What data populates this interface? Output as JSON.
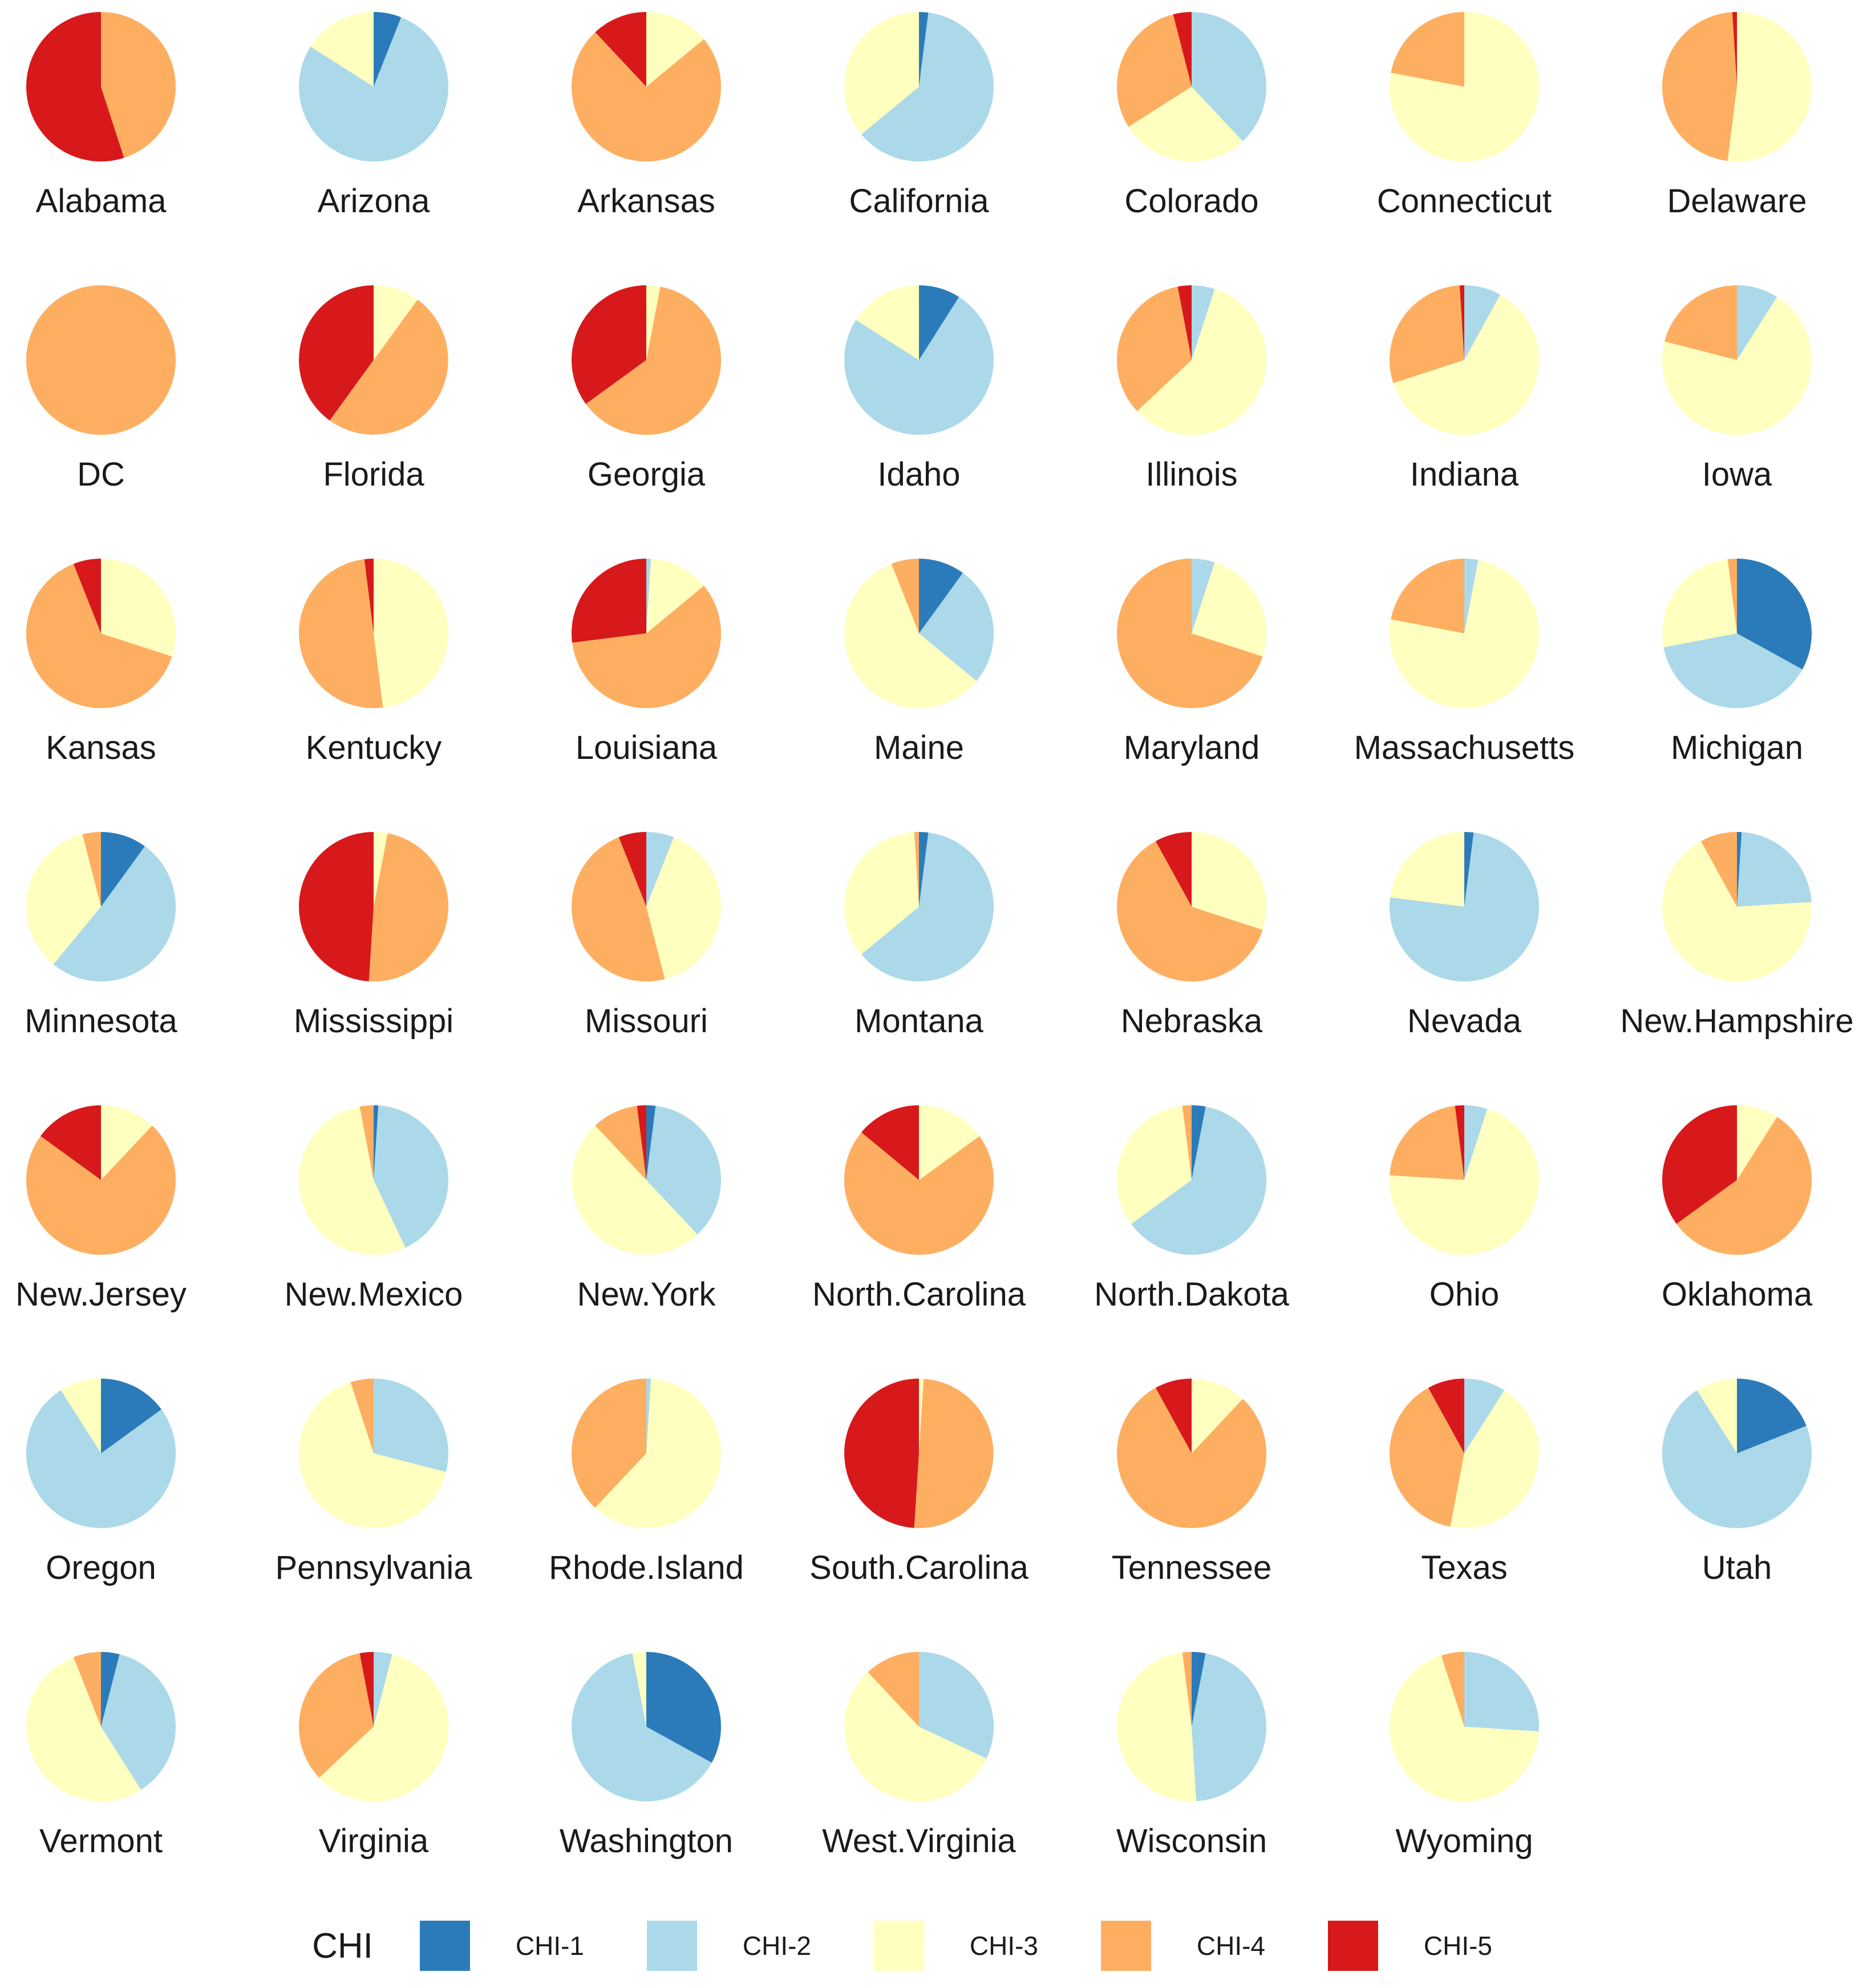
{
  "chart_data": {
    "type": "pie",
    "title": "",
    "legend_title": "CHI",
    "categories": [
      "CHI-1",
      "CHI-2",
      "CHI-3",
      "CHI-4",
      "CHI-5"
    ],
    "colors": [
      "#2b7bba",
      "#abd9e9",
      "#ffffbf",
      "#fdae61",
      "#d7191c"
    ],
    "value_unit": "percent share of each state",
    "states": [
      {
        "name": "Alabama",
        "values": [
          0,
          0,
          0,
          45,
          55
        ]
      },
      {
        "name": "Arizona",
        "values": [
          6,
          78,
          16,
          0,
          0
        ]
      },
      {
        "name": "Arkansas",
        "values": [
          0,
          0,
          14,
          74,
          12
        ]
      },
      {
        "name": "California",
        "values": [
          2,
          62,
          36,
          0,
          0
        ]
      },
      {
        "name": "Colorado",
        "values": [
          0,
          38,
          28,
          30,
          4
        ]
      },
      {
        "name": "Connecticut",
        "values": [
          0,
          0,
          78,
          22,
          0
        ]
      },
      {
        "name": "Delaware",
        "values": [
          0,
          0,
          52,
          47,
          1
        ]
      },
      {
        "name": "DC",
        "values": [
          0,
          0,
          0,
          100,
          0
        ]
      },
      {
        "name": "Florida",
        "values": [
          0,
          0,
          10,
          50,
          40
        ]
      },
      {
        "name": "Georgia",
        "values": [
          0,
          0,
          3,
          62,
          35
        ]
      },
      {
        "name": "Idaho",
        "values": [
          9,
          75,
          16,
          0,
          0
        ]
      },
      {
        "name": "Illinois",
        "values": [
          0,
          5,
          58,
          34,
          3
        ]
      },
      {
        "name": "Indiana",
        "values": [
          0,
          8,
          62,
          29,
          1
        ]
      },
      {
        "name": "Iowa",
        "values": [
          0,
          9,
          70,
          21,
          0
        ]
      },
      {
        "name": "Kansas",
        "values": [
          0,
          0,
          30,
          64,
          6
        ]
      },
      {
        "name": "Kentucky",
        "values": [
          0,
          0,
          48,
          50,
          2
        ]
      },
      {
        "name": "Louisiana",
        "values": [
          0,
          1,
          13,
          59,
          27
        ]
      },
      {
        "name": "Maine",
        "values": [
          10,
          26,
          58,
          6,
          0
        ]
      },
      {
        "name": "Maryland",
        "values": [
          0,
          5,
          25,
          70,
          0
        ]
      },
      {
        "name": "Massachusetts",
        "values": [
          0,
          3,
          75,
          22,
          0
        ]
      },
      {
        "name": "Michigan",
        "values": [
          33,
          39,
          26,
          2,
          0
        ]
      },
      {
        "name": "Minnesota",
        "values": [
          10,
          51,
          35,
          4,
          0
        ]
      },
      {
        "name": "Mississippi",
        "values": [
          0,
          0,
          3,
          48,
          49
        ]
      },
      {
        "name": "Missouri",
        "values": [
          0,
          6,
          40,
          48,
          6
        ]
      },
      {
        "name": "Montana",
        "values": [
          2,
          62,
          35,
          1,
          0
        ]
      },
      {
        "name": "Nebraska",
        "values": [
          0,
          0,
          30,
          62,
          8
        ]
      },
      {
        "name": "Nevada",
        "values": [
          2,
          75,
          23,
          0,
          0
        ]
      },
      {
        "name": "New.Hampshire",
        "values": [
          1,
          23,
          68,
          8,
          0
        ]
      },
      {
        "name": "New.Jersey",
        "values": [
          0,
          0,
          12,
          73,
          15
        ]
      },
      {
        "name": "New.Mexico",
        "values": [
          1,
          42,
          54,
          3,
          0
        ]
      },
      {
        "name": "New.York",
        "values": [
          2,
          36,
          50,
          10,
          2
        ]
      },
      {
        "name": "North.Carolina",
        "values": [
          0,
          0,
          15,
          71,
          14
        ]
      },
      {
        "name": "North.Dakota",
        "values": [
          3,
          62,
          33,
          2,
          0
        ]
      },
      {
        "name": "Ohio",
        "values": [
          0,
          5,
          71,
          22,
          2
        ]
      },
      {
        "name": "Oklahoma",
        "values": [
          0,
          0,
          9,
          56,
          35
        ]
      },
      {
        "name": "Oregon",
        "values": [
          15,
          76,
          9,
          0,
          0
        ]
      },
      {
        "name": "Pennsylvania",
        "values": [
          0,
          29,
          66,
          5,
          0
        ]
      },
      {
        "name": "Rhode.Island",
        "values": [
          0,
          1,
          61,
          38,
          0
        ]
      },
      {
        "name": "South.Carolina",
        "values": [
          0,
          0,
          1,
          50,
          49
        ]
      },
      {
        "name": "Tennessee",
        "values": [
          0,
          0,
          12,
          80,
          8
        ]
      },
      {
        "name": "Texas",
        "values": [
          0,
          9,
          44,
          39,
          8
        ]
      },
      {
        "name": "Utah",
        "values": [
          19,
          72,
          9,
          0,
          0
        ]
      },
      {
        "name": "Vermont",
        "values": [
          4,
          37,
          53,
          6,
          0
        ]
      },
      {
        "name": "Virginia",
        "values": [
          0,
          4,
          59,
          34,
          3
        ]
      },
      {
        "name": "Washington",
        "values": [
          33,
          64,
          3,
          0,
          0
        ]
      },
      {
        "name": "West.Virginia",
        "values": [
          0,
          32,
          56,
          12,
          0
        ]
      },
      {
        "name": "Wisconsin",
        "values": [
          3,
          46,
          49,
          2,
          0
        ]
      },
      {
        "name": "Wyoming",
        "values": [
          0,
          26,
          69,
          5,
          0
        ]
      }
    ]
  },
  "legend": {
    "title": "CHI",
    "items": [
      {
        "label": "CHI-1",
        "color": "#2b7bba"
      },
      {
        "label": "CHI-2",
        "color": "#abd9e9"
      },
      {
        "label": "CHI-3",
        "color": "#ffffbf"
      },
      {
        "label": "CHI-4",
        "color": "#fdae61"
      },
      {
        "label": "CHI-5",
        "color": "#d7191c"
      }
    ]
  }
}
